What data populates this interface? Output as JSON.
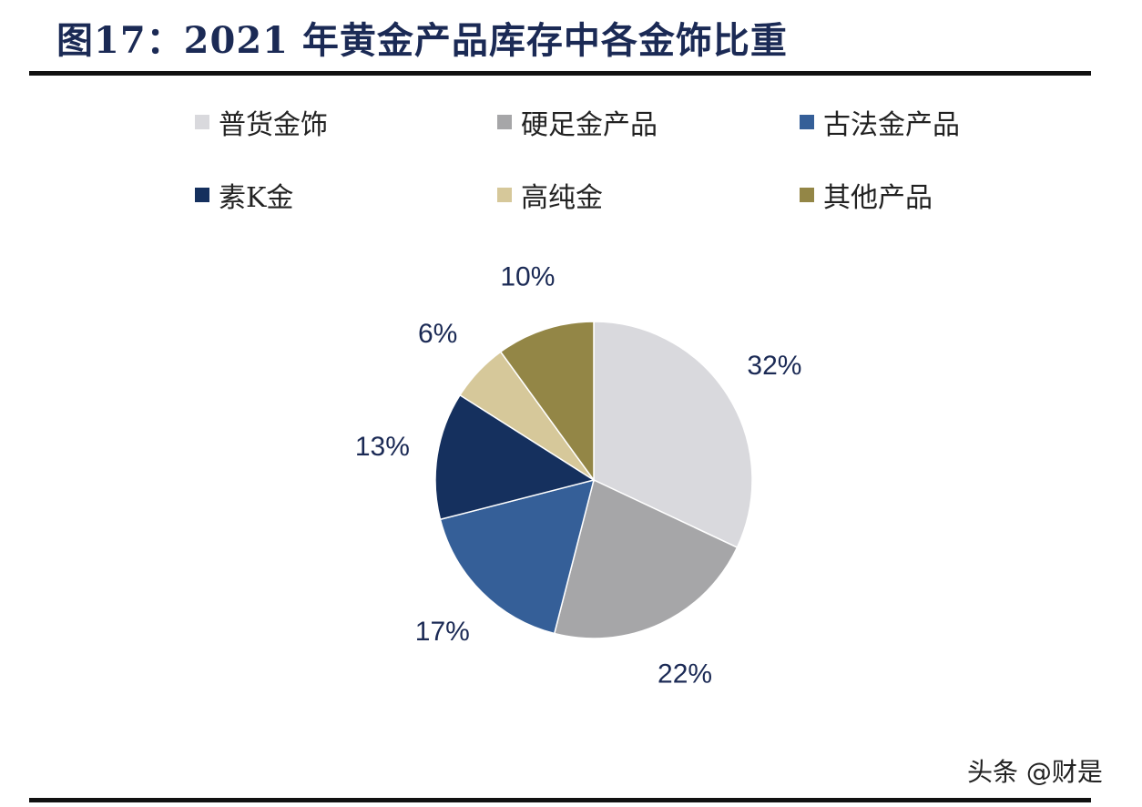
{
  "chart_data": {
    "type": "pie",
    "title": "图17：2021 年黄金产品库存中各金饰比重",
    "categories": [
      "普货金饰",
      "硬足金产品",
      "古法金产品",
      "素K金",
      "高纯金",
      "其他产品"
    ],
    "values": [
      32,
      22,
      17,
      13,
      6,
      10
    ],
    "labels": [
      "32%",
      "22%",
      "17%",
      "13%",
      "6%",
      "10%"
    ],
    "colors": [
      "#d9d9dd",
      "#a6a6a8",
      "#355f98",
      "#15305e",
      "#d6c89a",
      "#938646"
    ],
    "start": "top, clockwise",
    "legend_placement": "top"
  },
  "watermark": "头条 @财是"
}
